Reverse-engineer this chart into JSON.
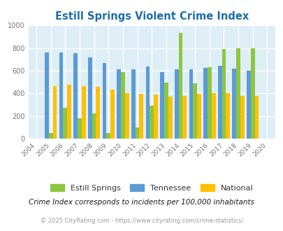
{
  "title": "Estill Springs Violent Crime Index",
  "years": [
    2004,
    2005,
    2006,
    2007,
    2008,
    2009,
    2010,
    2011,
    2012,
    2013,
    2014,
    2015,
    2016,
    2017,
    2018,
    2019,
    2020
  ],
  "estill_springs": [
    0,
    50,
    270,
    180,
    220,
    50,
    590,
    100,
    290,
    495,
    935,
    490,
    630,
    790,
    800,
    795,
    0
  ],
  "tennessee": [
    0,
    760,
    760,
    755,
    720,
    665,
    610,
    610,
    640,
    585,
    610,
    610,
    625,
    645,
    620,
    600,
    0
  ],
  "national": [
    0,
    465,
    475,
    465,
    455,
    430,
    405,
    395,
    390,
    370,
    375,
    395,
    400,
    400,
    380,
    380,
    0
  ],
  "color_estill": "#8dc63f",
  "color_tennessee": "#5b9bd5",
  "color_national": "#ffc000",
  "bg_color": "#deeef6",
  "title_color": "#1f6fa8",
  "ylim": [
    0,
    1000
  ],
  "note_text": "Crime Index corresponds to incidents per 100,000 inhabitants",
  "footer": "© 2025 CityRating.com - https://www.cityrating.com/crime-statistics/",
  "bar_width": 0.28
}
